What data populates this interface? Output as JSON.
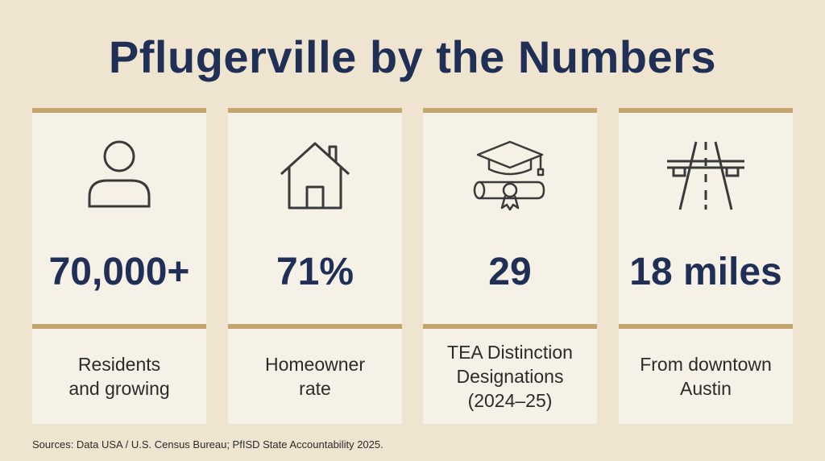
{
  "title": "Pflugerville by the Numbers",
  "stats": [
    {
      "icon": "person-icon",
      "value": "70,000+",
      "label": "Residents\nand growing"
    },
    {
      "icon": "house-icon",
      "value": "71%",
      "label": "Homeowner\nrate"
    },
    {
      "icon": "graduation-diploma-icon",
      "value": "29",
      "label": "TEA Distinction\nDesignations\n(2024–25)"
    },
    {
      "icon": "highway-icon",
      "value": "18 miles",
      "label": "From downtown\nAustin"
    }
  ],
  "sources": "Sources: Data USA / U.S. Census Bureau; PfISD State Accountability 2025.",
  "colors": {
    "background": "#efe4cf",
    "card": "#f6f1e7",
    "accent_bar": "#c3a56e",
    "heading": "#1f2f55"
  }
}
